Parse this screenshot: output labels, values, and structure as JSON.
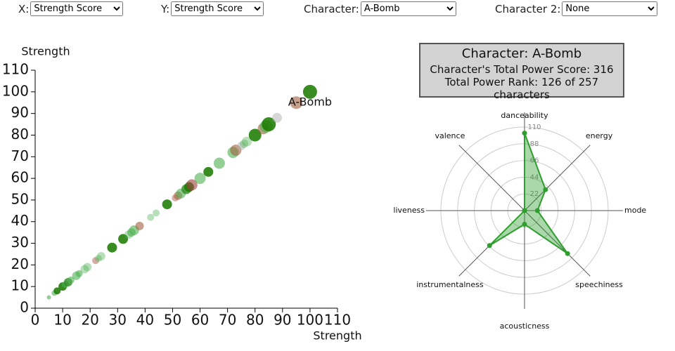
{
  "controls": [
    {
      "label": "X:",
      "value": "Strength Score"
    },
    {
      "label": "Y:",
      "value": "Strength Score"
    },
    {
      "label": "Character:",
      "value": "A-Bomb"
    },
    {
      "label": "Character 2:",
      "value": "None"
    }
  ],
  "info": {
    "title": "Character: A-Bomb",
    "lines": [
      "Character's Total Power Score: 316",
      "Total Power Rank: 126 of 257 characters"
    ]
  },
  "chart_data": [
    {
      "type": "scatter",
      "x_label": "Strength",
      "y_label": "Strength",
      "xlim": [
        0,
        110
      ],
      "ylim": [
        0,
        110
      ],
      "xticks": [
        0,
        10,
        20,
        30,
        40,
        50,
        60,
        70,
        80,
        90,
        100,
        110
      ],
      "yticks": [
        0,
        10,
        20,
        30,
        40,
        50,
        60,
        70,
        80,
        90,
        100,
        110
      ],
      "x": [
        5,
        7,
        8,
        10,
        11,
        12,
        13,
        15,
        16,
        18,
        19,
        22,
        23,
        24,
        28,
        32,
        34,
        35,
        36,
        38,
        42,
        44,
        48,
        51,
        52,
        53,
        55,
        56,
        57,
        60,
        63,
        67,
        72,
        73,
        75,
        76,
        77,
        80,
        83,
        84,
        85,
        88,
        95,
        100
      ],
      "y": [
        5,
        7,
        8,
        10,
        11,
        12,
        13,
        15,
        16,
        18,
        19,
        22,
        23,
        24,
        28,
        32,
        34,
        35,
        36,
        38,
        42,
        44,
        48,
        51,
        52,
        53,
        55,
        56,
        57,
        60,
        63,
        67,
        72,
        73,
        75,
        76,
        77,
        80,
        83,
        84,
        85,
        88,
        95,
        100
      ],
      "sizes": [
        3,
        4,
        5,
        6,
        5,
        6,
        5,
        6,
        5,
        6,
        6,
        5,
        5,
        6,
        7,
        7,
        6,
        6,
        7,
        6,
        5,
        5,
        7,
        5,
        6,
        7,
        7,
        7,
        8,
        8,
        7,
        8,
        8,
        8,
        6,
        6,
        7,
        9,
        8,
        9,
        10,
        7,
        9,
        10
      ],
      "colors": [
        "#4caf5099",
        "#4caf5099",
        "#1a7a00dd",
        "#1a7a00dd",
        "#4caf5099",
        "#2e8b22cc",
        "#4caf5099",
        "#4caf5099",
        "#4caf5099",
        "#4caf5066",
        "#4caf5066",
        "#b0605080",
        "#4caf5066",
        "#4caf5066",
        "#1a7a00dd",
        "#1a7a00dd",
        "#4caf5066",
        "#4caf5099",
        "#4caf5099",
        "#a0604099",
        "#4caf5066",
        "#4caf5066",
        "#1a7a00dd",
        "#b0605080",
        "#a0604099",
        "#4caf5099",
        "#2e8b22cc",
        "#1a7a00dd",
        "#a0404099",
        "#4caf5099",
        "#1a7a00dd",
        "#4caf5099",
        "#4caf5099",
        "#a0604099",
        "#b0b0b080",
        "#4caf5066",
        "#4caf5066",
        "#1a7a00dd",
        "#a0604099",
        "#4caf5099",
        "#1a7a00dd",
        "#b0b0b080",
        "#a0604099",
        "#1a7a00dd"
      ],
      "annotations": [
        {
          "text": "A-Bomb",
          "x": 100,
          "y": 100
        }
      ]
    },
    {
      "type": "radar",
      "categories": [
        "danceability",
        "energy",
        "mode",
        "speechiness",
        "acousticness",
        "instrumentalness",
        "liveness",
        "valence"
      ],
      "values": [
        102,
        39,
        17,
        80,
        18,
        65,
        0,
        0
      ],
      "rlim": [
        0,
        110
      ],
      "rticks": [
        22,
        44,
        66,
        88,
        110
      ],
      "color": "#2e9e2e"
    }
  ]
}
